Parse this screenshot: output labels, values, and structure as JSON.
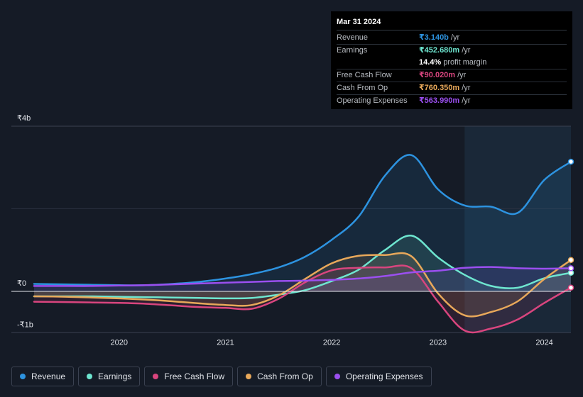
{
  "tooltip": {
    "date": "Mar 31 2024",
    "rows": [
      {
        "label": "Revenue",
        "value": "₹3.140b",
        "unit": "/yr",
        "color": "#2d93e0"
      },
      {
        "label": "Earnings",
        "value": "₹452.680m",
        "unit": "/yr",
        "color": "#6ee6d0"
      },
      {
        "label": "",
        "value": "14.4%",
        "unit": "profit margin",
        "color": "#ffffff"
      },
      {
        "label": "Free Cash Flow",
        "value": "₹90.020m",
        "unit": "/yr",
        "color": "#d9457e"
      },
      {
        "label": "Cash From Op",
        "value": "₹760.350m",
        "unit": "/yr",
        "color": "#e8a85a"
      },
      {
        "label": "Operating Expenses",
        "value": "₹563.990m",
        "unit": "/yr",
        "color": "#9b4ff0"
      }
    ]
  },
  "legend": [
    {
      "label": "Revenue",
      "color": "#2d93e0"
    },
    {
      "label": "Earnings",
      "color": "#6ee6d0"
    },
    {
      "label": "Free Cash Flow",
      "color": "#d9457e"
    },
    {
      "label": "Cash From Op",
      "color": "#e8a85a"
    },
    {
      "label": "Operating Expenses",
      "color": "#9b4ff0"
    }
  ],
  "chart_data": {
    "type": "area",
    "title": "",
    "xlabel": "",
    "ylabel": "",
    "unit": "INR billions",
    "x_ticks": [
      2020,
      2021,
      2022,
      2023,
      2024
    ],
    "y_ticks": [
      {
        "value": 4,
        "label": "₹4b"
      },
      {
        "value": 0,
        "label": "₹0"
      },
      {
        "value": -1,
        "label": "-₹1b"
      }
    ],
    "xlim": [
      2019.2,
      2024.25
    ],
    "ylim": [
      -1,
      4
    ],
    "forecast_start": 2023.25,
    "series": [
      {
        "name": "Revenue",
        "color": "#2d93e0",
        "points": [
          [
            2019.2,
            0.18
          ],
          [
            2019.5,
            0.17
          ],
          [
            2019.75,
            0.16
          ],
          [
            2020.0,
            0.15
          ],
          [
            2020.25,
            0.15
          ],
          [
            2020.5,
            0.18
          ],
          [
            2020.75,
            0.23
          ],
          [
            2021.0,
            0.31
          ],
          [
            2021.25,
            0.42
          ],
          [
            2021.5,
            0.58
          ],
          [
            2021.75,
            0.84
          ],
          [
            2022.0,
            1.25
          ],
          [
            2022.25,
            1.8
          ],
          [
            2022.5,
            2.8
          ],
          [
            2022.75,
            3.3
          ],
          [
            2023.0,
            2.47
          ],
          [
            2023.25,
            2.08
          ],
          [
            2023.5,
            2.05
          ],
          [
            2023.75,
            1.9
          ],
          [
            2024.0,
            2.7
          ],
          [
            2024.25,
            3.14
          ]
        ]
      },
      {
        "name": "Earnings",
        "color": "#6ee6d0",
        "points": [
          [
            2019.2,
            -0.12
          ],
          [
            2019.5,
            -0.12
          ],
          [
            2019.75,
            -0.12
          ],
          [
            2020.0,
            -0.13
          ],
          [
            2020.25,
            -0.14
          ],
          [
            2020.5,
            -0.15
          ],
          [
            2020.75,
            -0.16
          ],
          [
            2021.0,
            -0.17
          ],
          [
            2021.25,
            -0.16
          ],
          [
            2021.5,
            -0.08
          ],
          [
            2021.75,
            0.03
          ],
          [
            2022.0,
            0.25
          ],
          [
            2022.25,
            0.52
          ],
          [
            2022.5,
            1.0
          ],
          [
            2022.75,
            1.35
          ],
          [
            2023.0,
            0.82
          ],
          [
            2023.25,
            0.4
          ],
          [
            2023.5,
            0.13
          ],
          [
            2023.75,
            0.09
          ],
          [
            2024.0,
            0.32
          ],
          [
            2024.25,
            0.45
          ]
        ]
      },
      {
        "name": "Free Cash Flow",
        "color": "#d9457e",
        "points": [
          [
            2019.2,
            -0.25
          ],
          [
            2019.5,
            -0.26
          ],
          [
            2019.75,
            -0.27
          ],
          [
            2020.0,
            -0.28
          ],
          [
            2020.25,
            -0.3
          ],
          [
            2020.5,
            -0.34
          ],
          [
            2020.75,
            -0.38
          ],
          [
            2021.0,
            -0.4
          ],
          [
            2021.25,
            -0.42
          ],
          [
            2021.5,
            -0.18
          ],
          [
            2021.75,
            0.22
          ],
          [
            2022.0,
            0.51
          ],
          [
            2022.25,
            0.57
          ],
          [
            2022.5,
            0.58
          ],
          [
            2022.75,
            0.56
          ],
          [
            2023.0,
            -0.25
          ],
          [
            2023.25,
            -0.95
          ],
          [
            2023.5,
            -0.9
          ],
          [
            2023.75,
            -0.68
          ],
          [
            2024.0,
            -0.28
          ],
          [
            2024.25,
            0.09
          ]
        ]
      },
      {
        "name": "Cash From Op",
        "color": "#e8a85a",
        "points": [
          [
            2019.2,
            -0.12
          ],
          [
            2019.5,
            -0.13
          ],
          [
            2019.75,
            -0.15
          ],
          [
            2020.0,
            -0.17
          ],
          [
            2020.25,
            -0.2
          ],
          [
            2020.5,
            -0.24
          ],
          [
            2020.75,
            -0.29
          ],
          [
            2021.0,
            -0.33
          ],
          [
            2021.25,
            -0.33
          ],
          [
            2021.5,
            -0.1
          ],
          [
            2021.75,
            0.3
          ],
          [
            2022.0,
            0.68
          ],
          [
            2022.25,
            0.86
          ],
          [
            2022.5,
            0.88
          ],
          [
            2022.75,
            0.85
          ],
          [
            2023.0,
            -0.05
          ],
          [
            2023.25,
            -0.58
          ],
          [
            2023.5,
            -0.5
          ],
          [
            2023.75,
            -0.24
          ],
          [
            2024.0,
            0.3
          ],
          [
            2024.25,
            0.76
          ]
        ]
      },
      {
        "name": "Operating Expenses",
        "color": "#9b4ff0",
        "points": [
          [
            2019.2,
            0.13
          ],
          [
            2019.5,
            0.13
          ],
          [
            2019.75,
            0.13
          ],
          [
            2020.0,
            0.14
          ],
          [
            2020.25,
            0.15
          ],
          [
            2020.5,
            0.17
          ],
          [
            2020.75,
            0.19
          ],
          [
            2021.0,
            0.21
          ],
          [
            2021.25,
            0.23
          ],
          [
            2021.5,
            0.25
          ],
          [
            2021.75,
            0.26
          ],
          [
            2022.0,
            0.28
          ],
          [
            2022.25,
            0.31
          ],
          [
            2022.5,
            0.37
          ],
          [
            2022.75,
            0.46
          ],
          [
            2023.0,
            0.5
          ],
          [
            2023.25,
            0.57
          ],
          [
            2023.5,
            0.59
          ],
          [
            2023.75,
            0.56
          ],
          [
            2024.0,
            0.55
          ],
          [
            2024.25,
            0.56
          ]
        ]
      }
    ]
  }
}
